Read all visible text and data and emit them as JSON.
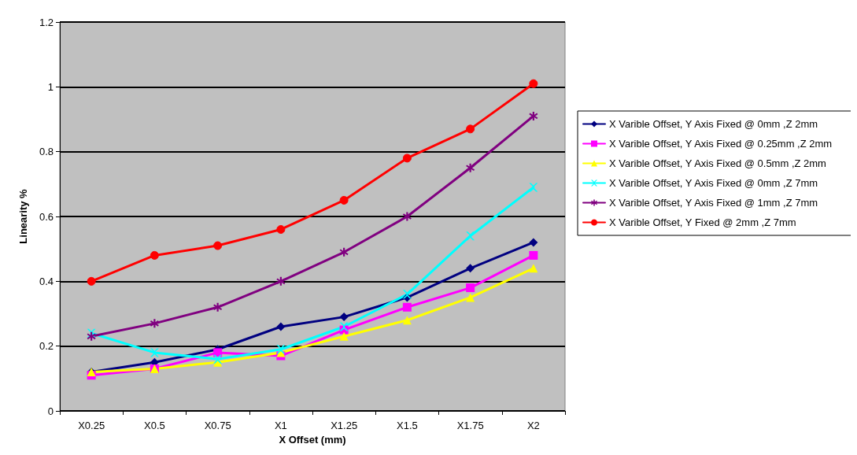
{
  "chart_data": {
    "type": "line",
    "xlabel": "X Offset (mm)",
    "ylabel": "Linearity %",
    "categories": [
      "X0.25",
      "X0.5",
      "X0.75",
      "X1",
      "X1.25",
      "X1.5",
      "X1.75",
      "X2"
    ],
    "series": [
      {
        "name": "X Varible Offset, Y Axis Fixed @ 0mm ,Z 2mm",
        "color": "#000080",
        "marker": "diamond",
        "values": [
          0.12,
          0.15,
          0.19,
          0.26,
          0.29,
          0.35,
          0.44,
          0.52
        ]
      },
      {
        "name": "X Varible Offset, Y Axis Fixed @ 0.25mm ,Z 2mm",
        "color": "#ff00ff",
        "marker": "square",
        "values": [
          0.11,
          0.13,
          0.18,
          0.17,
          0.25,
          0.32,
          0.38,
          0.48
        ]
      },
      {
        "name": "X Varible Offset, Y Axis Fixed @ 0.5mm ,Z 2mm",
        "color": "#ffff00",
        "marker": "triangle",
        "values": [
          0.12,
          0.13,
          0.15,
          0.18,
          0.23,
          0.28,
          0.35,
          0.44
        ]
      },
      {
        "name": "X Varible Offset, Y Axis Fixed @ 0mm ,Z 7mm",
        "color": "#00ffff",
        "marker": "cross",
        "values": [
          0.24,
          0.18,
          0.16,
          0.19,
          0.26,
          0.36,
          0.54,
          0.69
        ]
      },
      {
        "name": "X Varible Offset, Y Axis Fixed @ 1mm ,Z 7mm",
        "color": "#800080",
        "marker": "star",
        "values": [
          0.23,
          0.27,
          0.32,
          0.4,
          0.49,
          0.6,
          0.75,
          0.91
        ]
      },
      {
        "name": "X Varible Offset, Y Fixed @ 2mm ,Z 7mm",
        "color": "#ff0000",
        "marker": "circle",
        "values": [
          0.4,
          0.48,
          0.51,
          0.56,
          0.65,
          0.78,
          0.87,
          1.01
        ]
      }
    ],
    "ylim": [
      0,
      1.2
    ],
    "yticks": [
      0,
      0.2,
      0.4,
      0.6,
      0.8,
      1,
      1.2
    ],
    "grid": "y",
    "legend": "right",
    "line_style": "solid"
  }
}
